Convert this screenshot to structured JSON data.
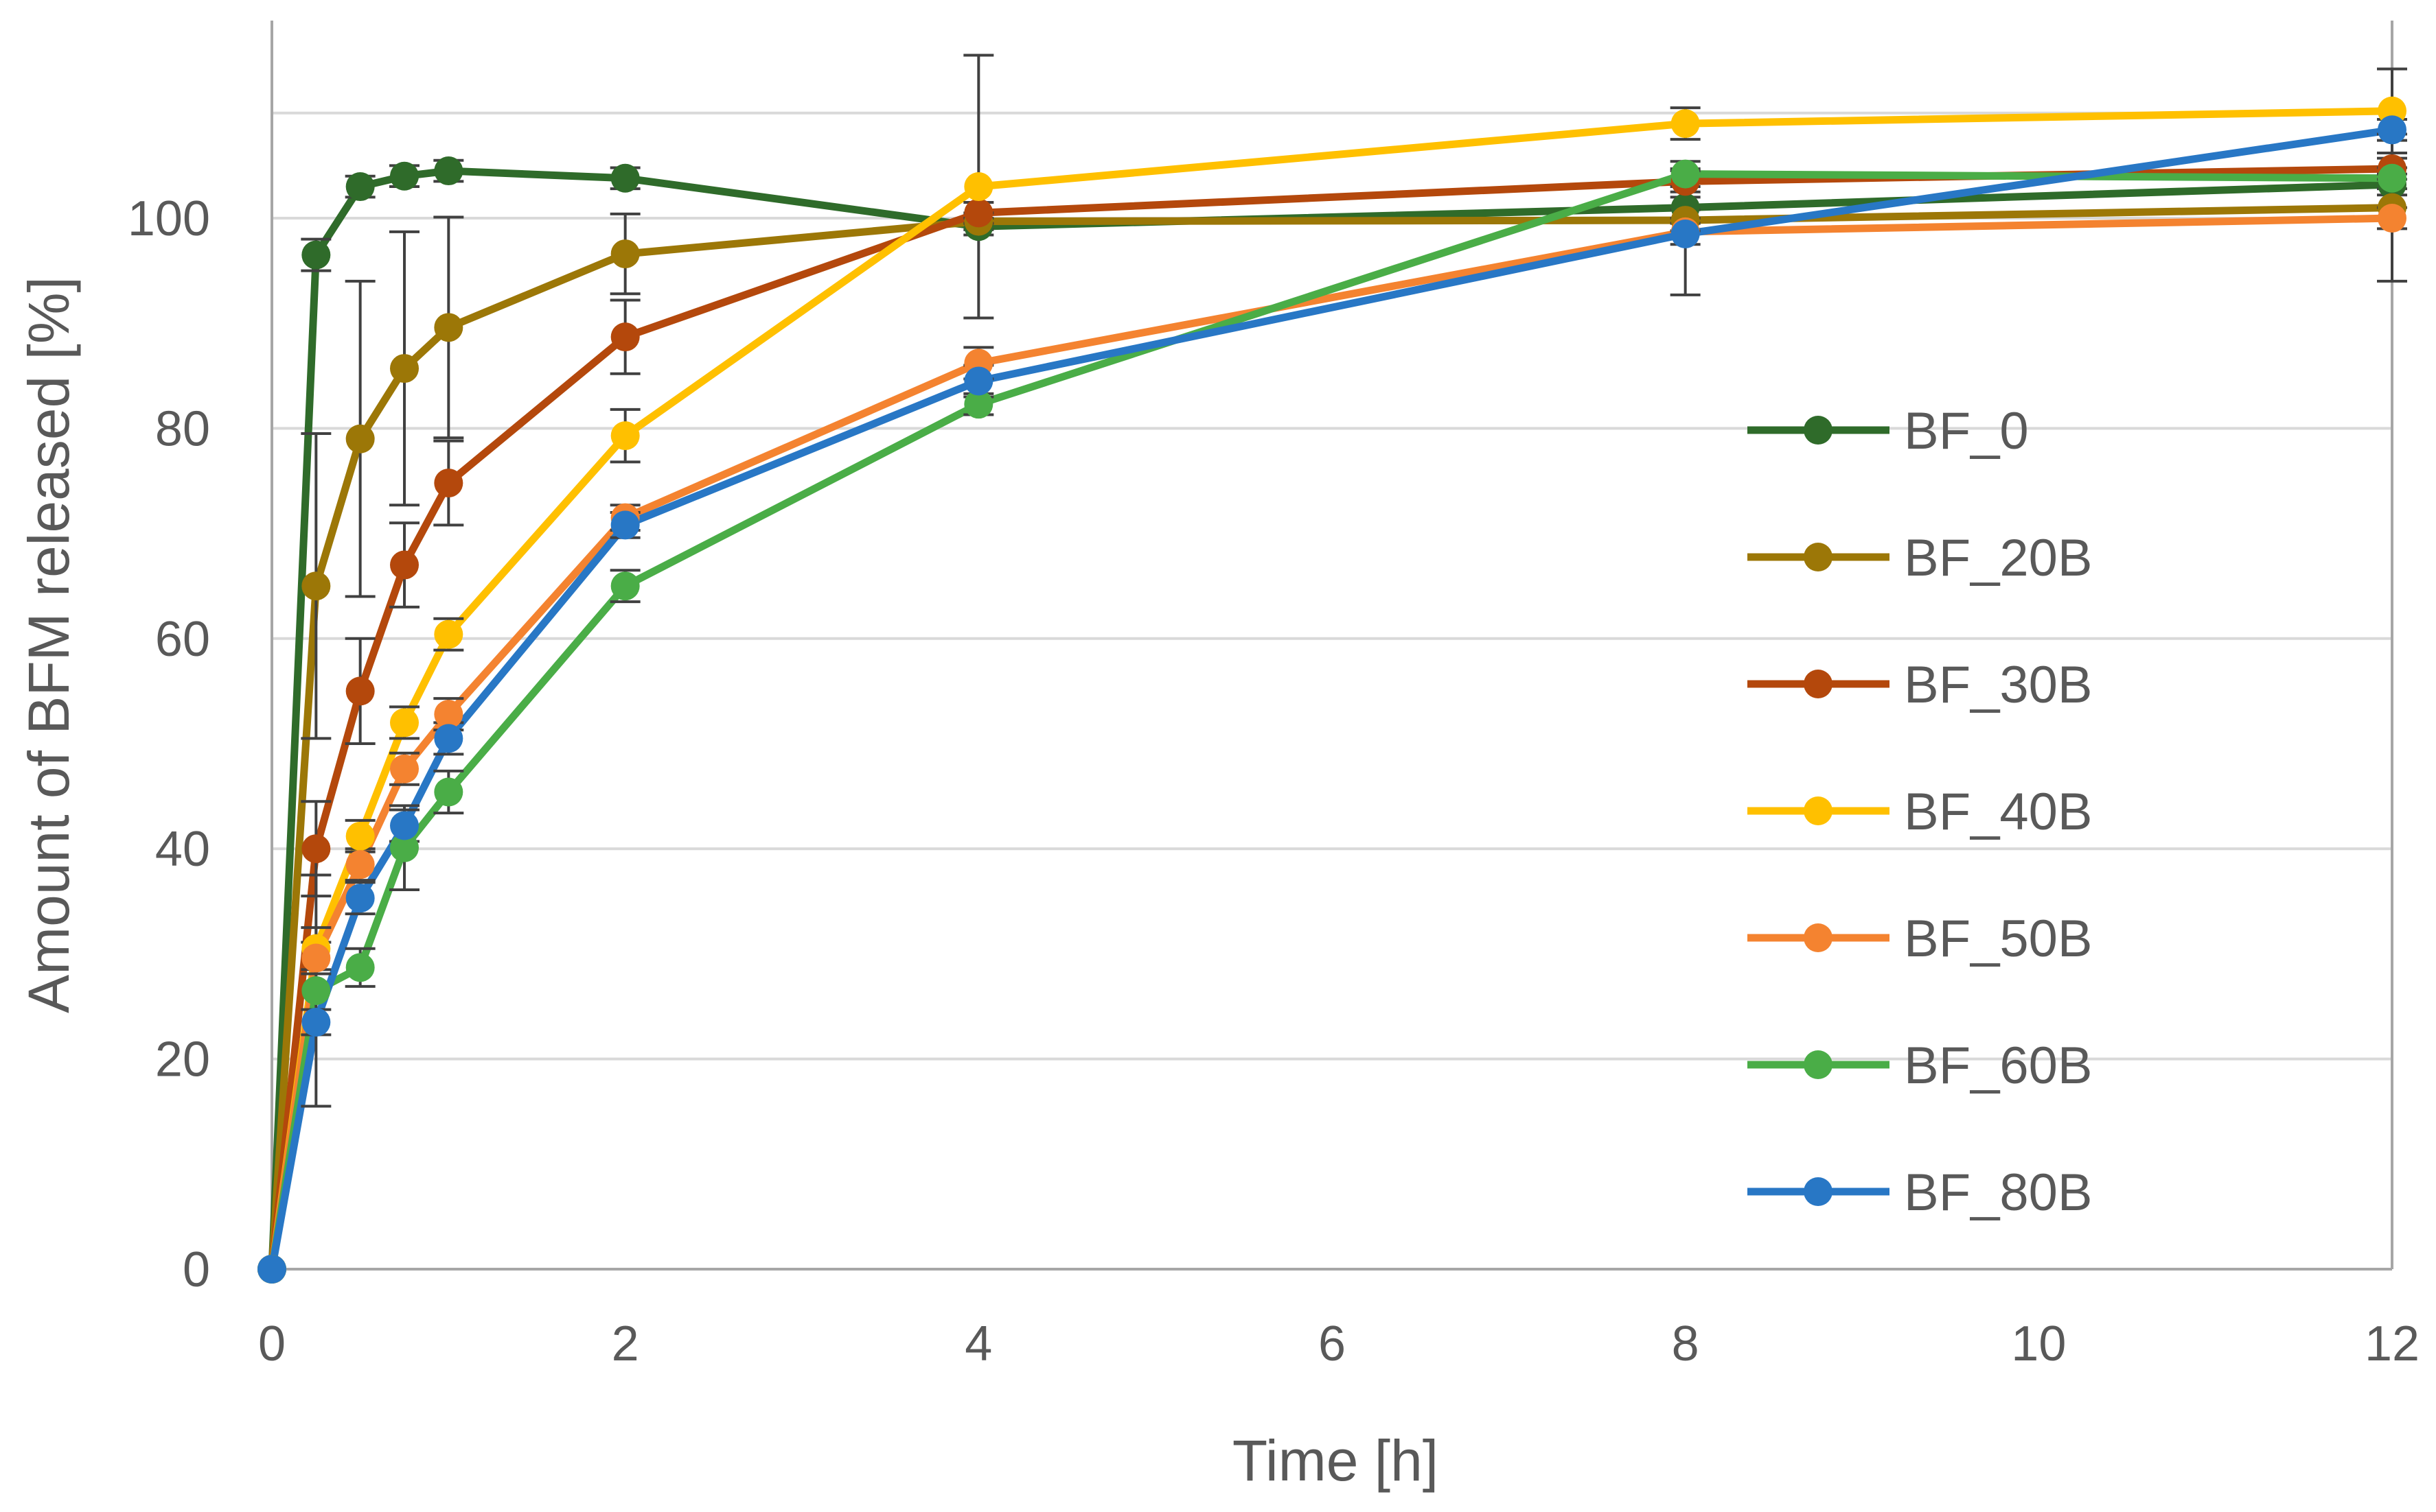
{
  "chart_data": {
    "type": "line",
    "title": "",
    "xlabel": "Time [h]",
    "ylabel": "Amount of BFM released [%]",
    "xlim": [
      0,
      12
    ],
    "ylim": [
      0,
      120
    ],
    "xticks": [
      0,
      2,
      4,
      6,
      8,
      10,
      12
    ],
    "yticks": [
      0,
      20,
      40,
      60,
      80,
      100
    ],
    "grid": "horizontal",
    "legend_position": "right",
    "x": [
      0,
      0.25,
      0.5,
      0.75,
      1,
      2,
      4,
      8,
      12
    ],
    "series": [
      {
        "name": "BF_0",
        "color": "#2f6b2a",
        "values": [
          0,
          96.5,
          103,
          104,
          104.5,
          103.8,
          99.2,
          101,
          103.2
        ],
        "error": [
          0,
          1.5,
          1,
          1,
          1,
          1,
          0.8,
          1,
          1
        ]
      },
      {
        "name": "BF_20B",
        "color": "#9c7707",
        "values": [
          0,
          65,
          79,
          85.7,
          89.6,
          96.6,
          99.7,
          99.8,
          101
        ],
        "error": [
          0,
          14.5,
          15,
          13,
          10.5,
          3.8,
          0.8,
          1,
          7
        ]
      },
      {
        "name": "BF_30B",
        "color": "#b4480c",
        "values": [
          0,
          40,
          55,
          67,
          74.8,
          88.7,
          100.5,
          103.5,
          104.7
        ],
        "error": [
          0,
          4.5,
          5,
          4,
          4,
          3.5,
          1,
          1,
          1
        ]
      },
      {
        "name": "BF_40B",
        "color": "#ffc000",
        "values": [
          0,
          30.5,
          41.2,
          52,
          60.4,
          79.3,
          103,
          109,
          110.2
        ],
        "error": [
          0,
          2,
          1.5,
          1.5,
          1.5,
          2.5,
          12.5,
          1.5,
          4
        ]
      },
      {
        "name": "BF_50B",
        "color": "#f48330",
        "values": [
          0,
          29.6,
          38.5,
          47.6,
          52.8,
          71.5,
          86.2,
          98.7,
          100
        ],
        "error": [
          0,
          1.5,
          1.5,
          1.5,
          1.5,
          1.2,
          1.5,
          6,
          1
        ]
      },
      {
        "name": "BF_60B",
        "color": "#4aad47",
        "values": [
          0,
          26.5,
          28.7,
          40.1,
          45.4,
          65,
          82.3,
          104.2,
          103.8
        ],
        "error": [
          0,
          11,
          1.8,
          4,
          2,
          1.5,
          1,
          1.2,
          1
        ]
      },
      {
        "name": "BF_80B",
        "color": "#2877c5",
        "values": [
          0,
          23.5,
          35.3,
          42.2,
          50.5,
          70.8,
          84.5,
          98.5,
          108.4
        ],
        "error": [
          0,
          1.2,
          1.5,
          1.5,
          1.5,
          1.2,
          1.5,
          1,
          1
        ]
      }
    ]
  },
  "colors": {
    "axis": "#a6a6a6",
    "grid": "#d9d9d9",
    "error_bar": "#404040",
    "text": "#595959"
  }
}
